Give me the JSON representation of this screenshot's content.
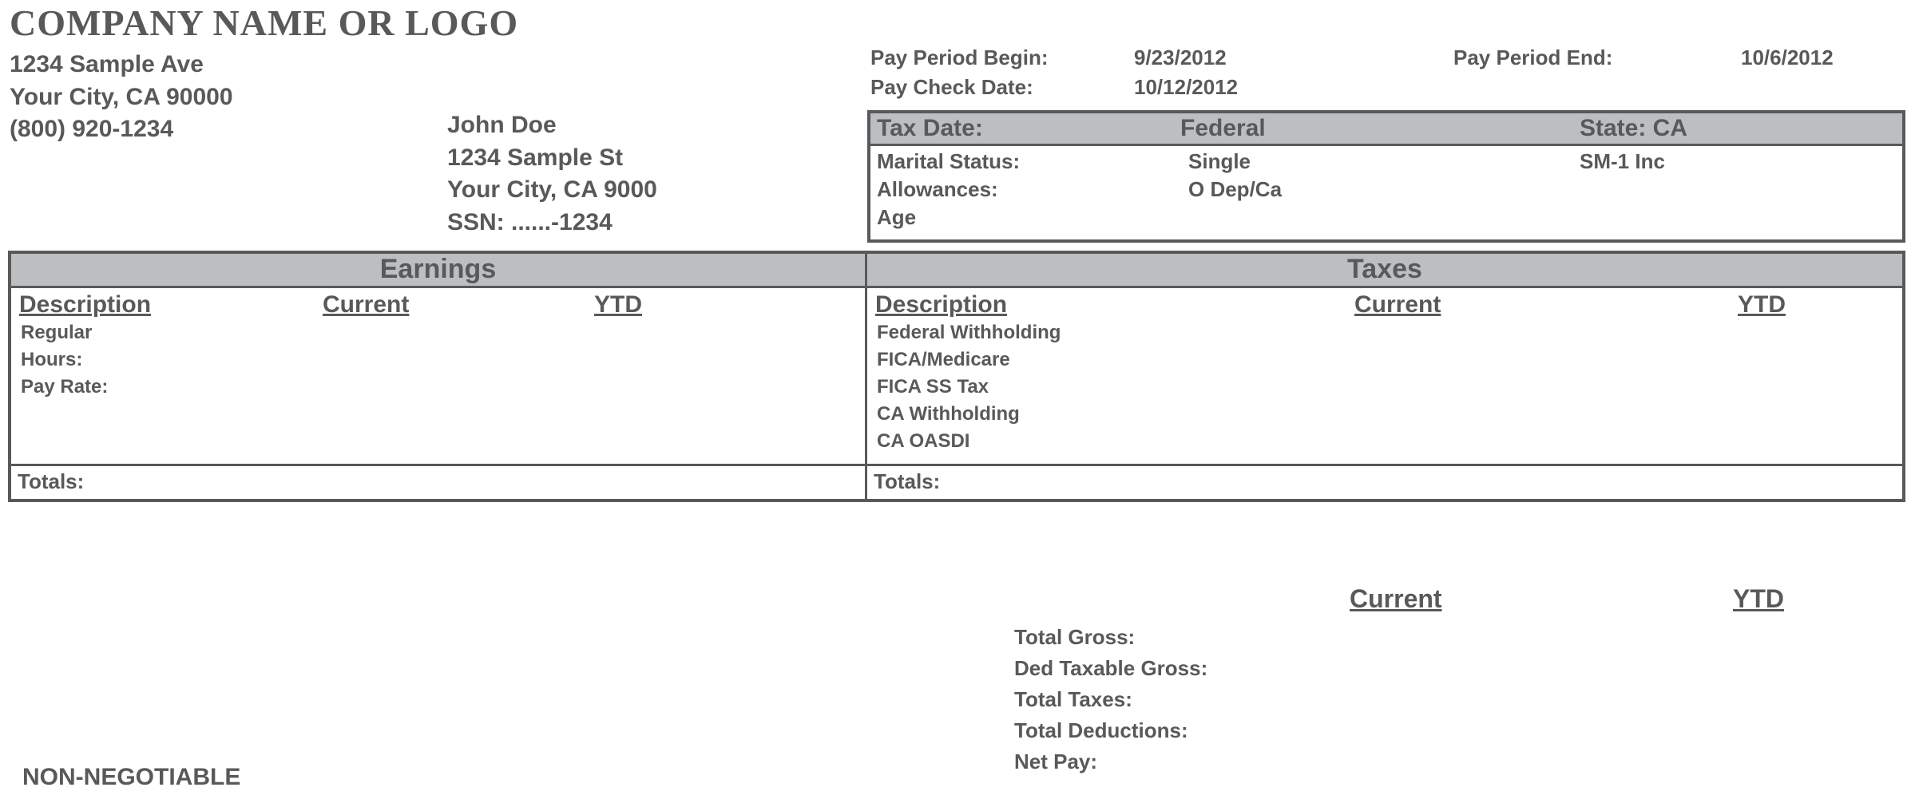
{
  "company": {
    "name": "COMPANY NAME OR LOGO",
    "address_line1": "1234 Sample Ave",
    "address_line2": "Your City, CA 90000",
    "phone": "(800) 920-1234"
  },
  "employee": {
    "name": "John Doe",
    "address_line1": "1234 Sample St",
    "address_line2": "Your City, CA 9000",
    "ssn_label": "SSN: ......-1234"
  },
  "pay_period": {
    "begin_label": "Pay Period Begin:",
    "begin_value": "9/23/2012",
    "end_label": "Pay Period End:",
    "end_value": "10/6/2012",
    "check_date_label": "Pay Check Date:",
    "check_date_value": "10/12/2012"
  },
  "tax_info": {
    "header": {
      "c1": "Tax Date:",
      "c2": "Federal",
      "c3": "State: CA"
    },
    "rows": [
      {
        "c1": "Marital Status:",
        "c2": "Single",
        "c3": "SM-1 Inc"
      },
      {
        "c1": "Allowances:",
        "c2": "O Dep/Ca",
        "c3": ""
      },
      {
        "c1": "Age",
        "c2": "",
        "c3": ""
      }
    ]
  },
  "earnings": {
    "title": "Earnings",
    "col_desc": "Description",
    "col_current": "Current",
    "col_ytd": "YTD",
    "rows": [
      "Regular",
      "Hours:",
      "Pay Rate:"
    ],
    "totals_label": "Totals:"
  },
  "taxes": {
    "title": "Taxes",
    "col_desc": "Description",
    "col_current": "Current",
    "col_ytd": "YTD",
    "rows": [
      "Federal Withholding",
      "FICA/Medicare",
      "FICA SS Tax",
      "CA Withholding",
      "CA OASDI"
    ],
    "totals_label": "Totals:"
  },
  "summary": {
    "col_current": "Current",
    "col_ytd": "YTD",
    "rows": [
      "Total Gross:",
      "Ded Taxable Gross:",
      "Total Taxes:",
      "Total Deductions:",
      "Net Pay:"
    ]
  },
  "footer": {
    "non_negotiable": "NON-NEGOTIABLE"
  },
  "colors": {
    "text": "#58595b",
    "header_bg": "#bcbec0",
    "border": "#58595b",
    "background": "#ffffff"
  }
}
